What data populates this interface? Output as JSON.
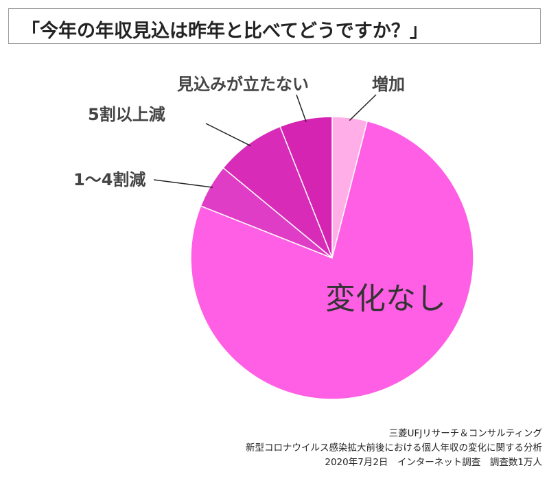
{
  "title": "「今年の年収見込は昨年と比べてどうですか？」",
  "chart_data": {
    "type": "pie",
    "slices": [
      {
        "label": "増加",
        "value": 4,
        "color": "#ffaee8"
      },
      {
        "label": "変化なし",
        "value": 77,
        "color": "#ff5fe4"
      },
      {
        "label": "1〜4割減",
        "value": 5,
        "color": "#e03dc6"
      },
      {
        "label": "5割以上減",
        "value": 8,
        "color": "#d82cb8"
      },
      {
        "label": "見込みが立たない",
        "value": 6,
        "color": "#d524b1"
      }
    ]
  },
  "source": {
    "line1": "三菱UFJリサーチ＆コンサルティング",
    "line2": "新型コロナウイルス感染拡大前後における個人年収の変化に関する分析",
    "line3": "2020年7月2日　インターネット調査　調査数1万人"
  }
}
